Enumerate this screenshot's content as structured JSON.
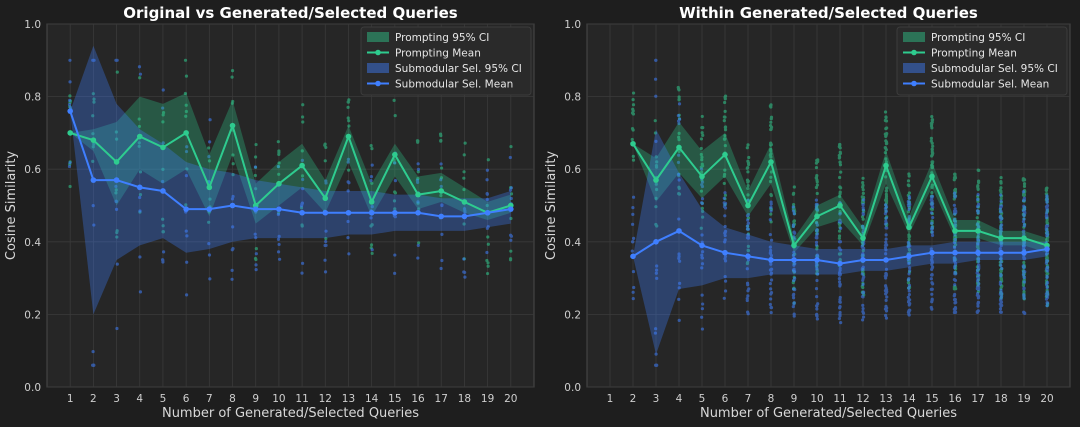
{
  "colors": {
    "background": "#1e1e1e",
    "axes_bg": "#262626",
    "grid": "#3a3a3a",
    "prompting": "#2ecc8f",
    "submodular": "#3f7fff"
  },
  "chart_data": [
    {
      "type": "line",
      "title": "Original vs Generated/Selected Queries",
      "xlabel": "Number of Generated/Selected Queries",
      "ylabel": "Cosine Similarity",
      "xlim": [
        0,
        21
      ],
      "ylim": [
        0,
        1
      ],
      "xticks": [
        1,
        2,
        3,
        4,
        5,
        6,
        7,
        8,
        9,
        10,
        11,
        12,
        13,
        14,
        15,
        16,
        17,
        18,
        19,
        20
      ],
      "yticks": [
        0.0,
        0.2,
        0.4,
        0.6,
        0.8,
        1.0
      ],
      "grid": true,
      "legend_position": "top-right",
      "legend": [
        "Prompting 95% CI",
        "Prompting Mean",
        "Submodular Sel. 95% CI",
        "Submodular Sel. Mean"
      ],
      "series": [
        {
          "key": "prompting",
          "x": [
            1,
            2,
            3,
            4,
            5,
            6,
            7,
            8,
            9,
            10,
            11,
            12,
            13,
            14,
            15,
            16,
            17,
            18,
            19,
            20
          ],
          "mean": [
            0.7,
            0.68,
            0.62,
            0.69,
            0.66,
            0.7,
            0.55,
            0.72,
            0.5,
            0.56,
            0.61,
            0.52,
            0.69,
            0.51,
            0.64,
            0.53,
            0.54,
            0.51,
            0.48,
            0.5
          ],
          "ci_low": [
            0.7,
            0.65,
            0.5,
            0.6,
            0.56,
            0.6,
            0.47,
            0.64,
            0.45,
            0.5,
            0.55,
            0.48,
            0.62,
            0.47,
            0.58,
            0.49,
            0.51,
            0.48,
            0.46,
            0.48
          ],
          "ci_high": [
            0.7,
            0.71,
            0.73,
            0.8,
            0.78,
            0.81,
            0.64,
            0.79,
            0.56,
            0.62,
            0.67,
            0.57,
            0.72,
            0.56,
            0.67,
            0.58,
            0.59,
            0.55,
            0.51,
            0.53
          ]
        },
        {
          "key": "submodular",
          "x": [
            1,
            2,
            3,
            4,
            5,
            6,
            7,
            8,
            9,
            10,
            11,
            12,
            13,
            14,
            15,
            16,
            17,
            18,
            19,
            20
          ],
          "mean": [
            0.76,
            0.57,
            0.57,
            0.55,
            0.54,
            0.49,
            0.49,
            0.5,
            0.49,
            0.49,
            0.48,
            0.48,
            0.48,
            0.48,
            0.48,
            0.48,
            0.47,
            0.47,
            0.48,
            0.49
          ],
          "ci_low": [
            0.76,
            0.2,
            0.35,
            0.39,
            0.41,
            0.37,
            0.38,
            0.4,
            0.41,
            0.41,
            0.41,
            0.41,
            0.42,
            0.42,
            0.43,
            0.43,
            0.43,
            0.43,
            0.44,
            0.45
          ],
          "ci_high": [
            0.76,
            0.94,
            0.78,
            0.71,
            0.67,
            0.62,
            0.6,
            0.59,
            0.57,
            0.56,
            0.55,
            0.54,
            0.54,
            0.54,
            0.53,
            0.53,
            0.52,
            0.52,
            0.52,
            0.54
          ]
        }
      ]
    },
    {
      "type": "line",
      "title": "Within Generated/Selected Queries",
      "xlabel": "Number of Generated/Selected Queries",
      "ylabel": "Cosine Similarity",
      "xlim": [
        0,
        21
      ],
      "ylim": [
        0,
        1
      ],
      "xticks": [
        1,
        2,
        3,
        4,
        5,
        6,
        7,
        8,
        9,
        10,
        11,
        12,
        13,
        14,
        15,
        16,
        17,
        18,
        19,
        20
      ],
      "yticks": [
        0.0,
        0.2,
        0.4,
        0.6,
        0.8,
        1.0
      ],
      "grid": true,
      "legend_position": "top-right",
      "legend": [
        "Prompting 95% CI",
        "Prompting Mean",
        "Submodular Sel. 95% CI",
        "Submodular Sel. Mean"
      ],
      "series": [
        {
          "key": "prompting",
          "x": [
            2,
            3,
            4,
            5,
            6,
            7,
            8,
            9,
            10,
            11,
            12,
            13,
            14,
            15,
            16,
            17,
            18,
            19,
            20
          ],
          "mean": [
            0.67,
            0.57,
            0.66,
            0.58,
            0.64,
            0.5,
            0.62,
            0.39,
            0.47,
            0.5,
            0.41,
            0.61,
            0.44,
            0.58,
            0.43,
            0.43,
            0.41,
            0.41,
            0.39
          ],
          "ci_low": [
            0.67,
            0.51,
            0.59,
            0.52,
            0.58,
            0.47,
            0.56,
            0.37,
            0.44,
            0.46,
            0.39,
            0.56,
            0.42,
            0.55,
            0.41,
            0.41,
            0.39,
            0.39,
            0.37
          ],
          "ci_high": [
            0.67,
            0.63,
            0.73,
            0.65,
            0.7,
            0.54,
            0.67,
            0.41,
            0.5,
            0.53,
            0.44,
            0.65,
            0.47,
            0.62,
            0.46,
            0.46,
            0.43,
            0.43,
            0.41
          ]
        },
        {
          "key": "submodular",
          "x": [
            2,
            3,
            4,
            5,
            6,
            7,
            8,
            9,
            10,
            11,
            12,
            13,
            14,
            15,
            16,
            17,
            18,
            19,
            20
          ],
          "mean": [
            0.36,
            0.4,
            0.43,
            0.39,
            0.37,
            0.36,
            0.35,
            0.35,
            0.35,
            0.34,
            0.35,
            0.35,
            0.36,
            0.37,
            0.37,
            0.37,
            0.37,
            0.37,
            0.38
          ],
          "ci_low": [
            0.36,
            0.09,
            0.27,
            0.28,
            0.3,
            0.3,
            0.31,
            0.31,
            0.31,
            0.31,
            0.32,
            0.32,
            0.33,
            0.34,
            0.34,
            0.35,
            0.35,
            0.35,
            0.36
          ],
          "ci_high": [
            0.36,
            0.71,
            0.59,
            0.49,
            0.44,
            0.42,
            0.4,
            0.39,
            0.38,
            0.38,
            0.38,
            0.38,
            0.39,
            0.39,
            0.4,
            0.4,
            0.4,
            0.4,
            0.4
          ]
        }
      ]
    }
  ]
}
